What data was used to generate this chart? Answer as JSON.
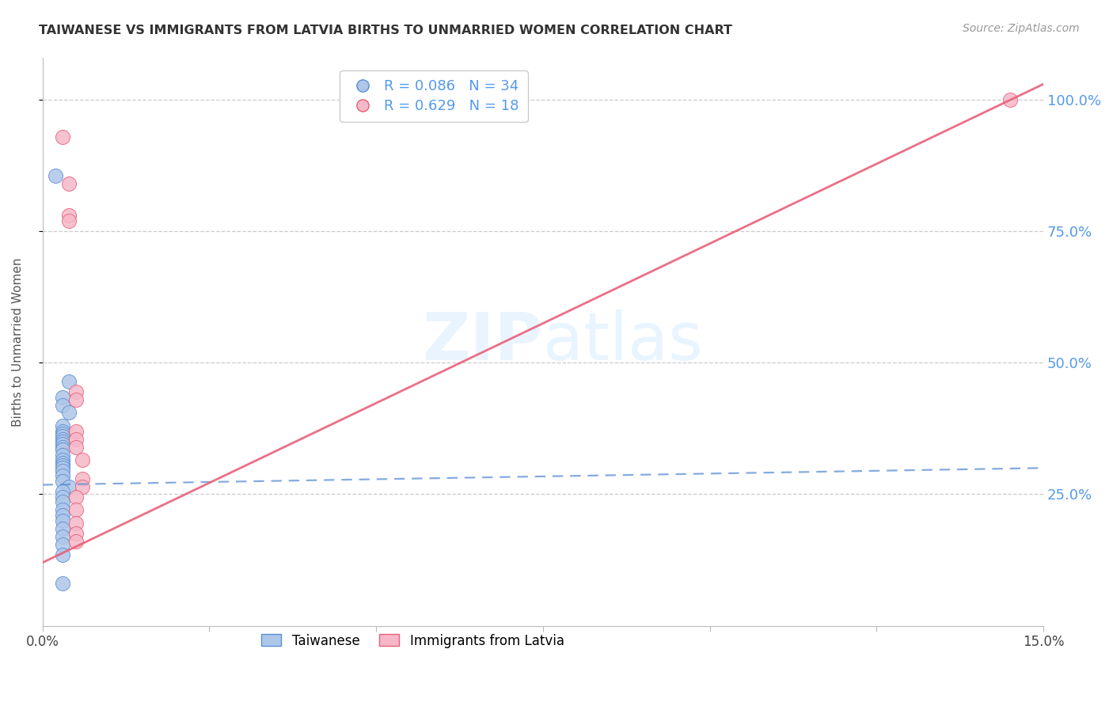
{
  "title": "TAIWANESE VS IMMIGRANTS FROM LATVIA BIRTHS TO UNMARRIED WOMEN CORRELATION CHART",
  "source": "Source: ZipAtlas.com",
  "ylabel": "Births to Unmarried Women",
  "xlim": [
    0.0,
    0.15
  ],
  "ylim": [
    0.0,
    1.08
  ],
  "xticks": [
    0.0,
    0.025,
    0.05,
    0.075,
    0.1,
    0.125,
    0.15
  ],
  "ytick_vals": [
    0.25,
    0.5,
    0.75,
    1.0
  ],
  "ytick_labels": [
    "25.0%",
    "50.0%",
    "75.0%",
    "100.0%"
  ],
  "watermark_zip": "ZIP",
  "watermark_atlas": "atlas",
  "taiwanese_color": "#aec6e8",
  "latvian_color": "#f5b8c8",
  "line_taiwanese_color": "#5b8fd4",
  "line_latvian_color": "#e8607a",
  "grid_color": "#cccccc",
  "title_color": "#333333",
  "right_tick_color": "#5599ee",
  "legend_r1_val": "0.086",
  "legend_n1_val": "34",
  "legend_r2_val": "0.629",
  "legend_n2_val": "18",
  "tw_line_x0": 0.0,
  "tw_line_y0": 0.268,
  "tw_line_x1": 0.15,
  "tw_line_y1": 0.3,
  "lv_line_x0": 0.0,
  "lv_line_y0": 0.12,
  "lv_line_x1": 0.15,
  "lv_line_y1": 1.03,
  "taiwanese_x": [
    0.002,
    0.004,
    0.003,
    0.003,
    0.004,
    0.003,
    0.003,
    0.003,
    0.003,
    0.003,
    0.003,
    0.003,
    0.003,
    0.003,
    0.003,
    0.003,
    0.003,
    0.003,
    0.003,
    0.003,
    0.003,
    0.003,
    0.004,
    0.003,
    0.003,
    0.003,
    0.003,
    0.003,
    0.003,
    0.003,
    0.003,
    0.003,
    0.003,
    0.003
  ],
  "taiwanese_y": [
    0.855,
    0.465,
    0.435,
    0.42,
    0.405,
    0.38,
    0.37,
    0.365,
    0.36,
    0.355,
    0.35,
    0.345,
    0.34,
    0.335,
    0.325,
    0.315,
    0.31,
    0.305,
    0.3,
    0.295,
    0.285,
    0.275,
    0.265,
    0.255,
    0.245,
    0.235,
    0.22,
    0.21,
    0.2,
    0.185,
    0.17,
    0.155,
    0.135,
    0.08
  ],
  "latvian_x": [
    0.003,
    0.004,
    0.004,
    0.004,
    0.005,
    0.005,
    0.005,
    0.005,
    0.005,
    0.006,
    0.006,
    0.006,
    0.005,
    0.005,
    0.005,
    0.005,
    0.005,
    0.145
  ],
  "latvian_y": [
    0.93,
    0.84,
    0.78,
    0.77,
    0.445,
    0.43,
    0.37,
    0.355,
    0.34,
    0.315,
    0.28,
    0.265,
    0.245,
    0.22,
    0.195,
    0.175,
    0.16,
    1.0
  ]
}
